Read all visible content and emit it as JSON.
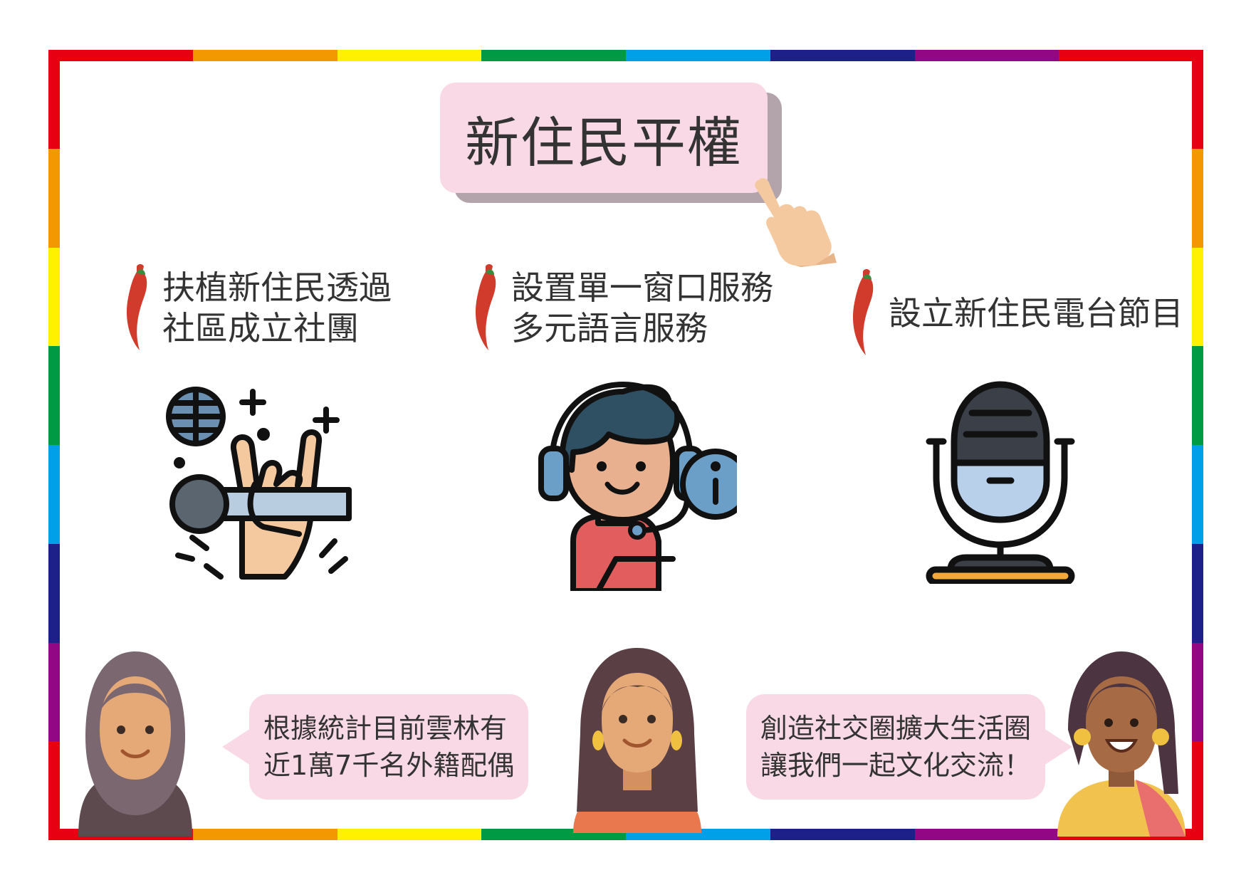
{
  "title": "新住民平權",
  "items": [
    {
      "line1": "扶植新住民透過",
      "line2": "社區成立社團",
      "icon": "microphone-hand-icon"
    },
    {
      "line1": "設置單一窗口服務",
      "line2": "多元語言服務",
      "icon": "customer-service-icon"
    },
    {
      "line1": "設立新住民電台節目",
      "line2": "",
      "icon": "studio-microphone-icon"
    }
  ],
  "bubbles": [
    {
      "line1": "根據統計目前雲林有",
      "line2": "近1萬7千名外籍配偶"
    },
    {
      "line1": "創造社交圈擴大生活圈",
      "line2": "讓我們一起文化交流！"
    }
  ],
  "colors": {
    "rainbow": [
      "#e60012",
      "#f39800",
      "#fff100",
      "#009944",
      "#00a0e9",
      "#1d2088",
      "#920783"
    ],
    "accent_pink": "#f9d9e5",
    "shadow": "#b3a3ab",
    "chili_red": "#d13b2b"
  }
}
